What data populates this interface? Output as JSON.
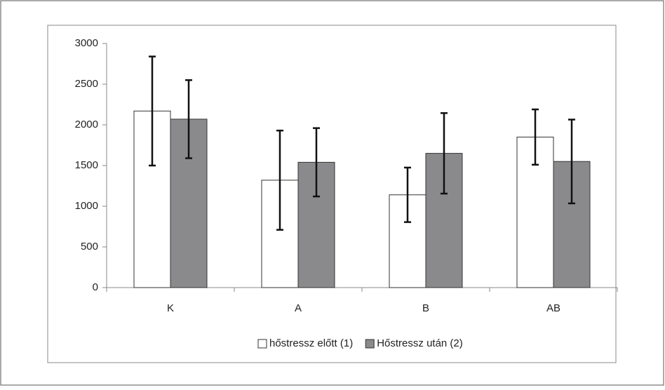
{
  "chart_data": {
    "type": "bar",
    "categories": [
      "K",
      "A",
      "B",
      "AB"
    ],
    "series": [
      {
        "name": "hőstressz előtt (1)",
        "color": "#ffffff",
        "values": [
          2170,
          1320,
          1140,
          1850
        ],
        "errors": [
          670,
          610,
          335,
          340
        ]
      },
      {
        "name": "Hőstressz után (2)",
        "color": "#8a8a8c",
        "values": [
          2070,
          1540,
          1650,
          1550
        ],
        "errors": [
          480,
          420,
          495,
          515
        ]
      }
    ],
    "ylim": [
      0,
      3000
    ],
    "yticks": [
      0,
      500,
      1000,
      1500,
      2000,
      2500,
      3000
    ],
    "grid": false,
    "legend": "bottom"
  }
}
